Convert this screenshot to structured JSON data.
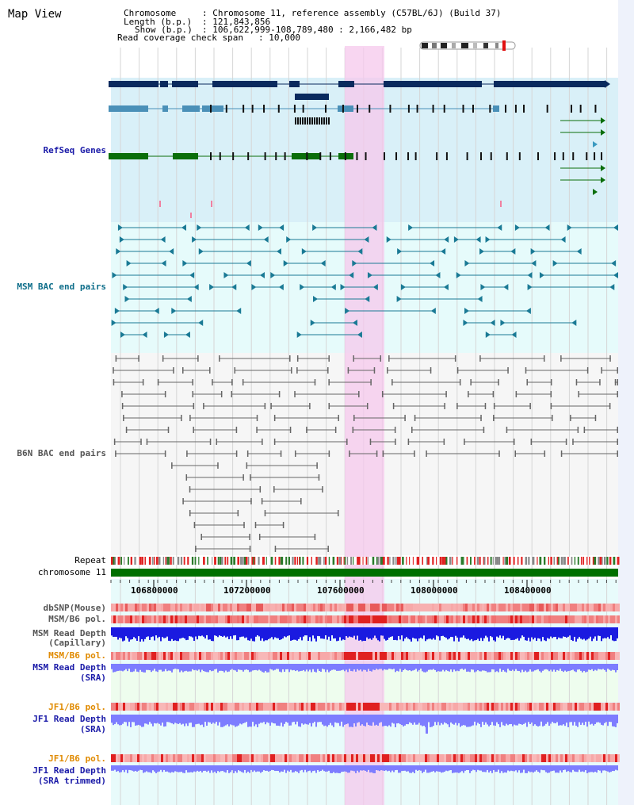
{
  "title": "Map View",
  "header": {
    "chromosome_label": "Chromosome",
    "chromosome_value": ": Chromosome 11, reference assembly (C57BL/6J) (Build 37)",
    "length_label": "Length (b.p.)",
    "length_value": ": 121,843,856",
    "show_label": "Show (b.p.)",
    "show_value": ": 106,622,999-108,789,480 : 2,166,482 bp",
    "coverage_label": "Read coverage check span",
    "coverage_value": ": 10,000"
  },
  "tracks": {
    "refseq": "RefSeq Genes",
    "msm_bac": "MSM BAC end pairs",
    "b6n_bac": "B6N BAC end pairs",
    "repeat": "Repeat",
    "chromosome": "chromosome 11",
    "dbsnp": "dbSNP(Mouse)",
    "msm_b6_pol": "MSM/B6 pol.",
    "msm_read_depth_cap_1": "MSM Read Depth",
    "msm_read_depth_cap_2": "(Capillary)",
    "msm_b6_pol_2": "MSM/B6 pol.",
    "msm_read_depth_sra_1": "MSM Read Depth",
    "msm_read_depth_sra_2": "(SRA)",
    "jf1_b6_pol_1": "JF1/B6 pol.",
    "jf1_read_depth_sra_1": "JF1 Read Depth",
    "jf1_read_depth_sra_2": "(SRA)",
    "jf1_b6_pol_2": "JF1/B6 pol.",
    "jf1_read_depth_trim_1": "JF1 Read Depth",
    "jf1_read_depth_trim_2": "(SRA trimmed)"
  },
  "axis_ticks": [
    "106800000",
    "107200000",
    "107600000",
    "108000000",
    "108400000"
  ],
  "colors": {
    "refseq_bg": "#d9f0f8",
    "msm_bg": "#e6fbfb",
    "b6n_bg": "#f6f6f6",
    "highlight": "#f5c8ec",
    "gene_dark": "#0a2a5e",
    "gene_mid": "#4a90b8",
    "gene_green": "#0a6e0a",
    "bac_teal": "#1a7a95",
    "bac_grey": "#666666",
    "chromosome_bar": "#007000",
    "label_blue": "#1a1aa8",
    "label_teal": "#0e6e8a",
    "label_grey": "#555555",
    "label_orange": "#e08a00",
    "depth_blue": "#1a1ae0",
    "depth_lavender": "#7d7dff"
  }
}
